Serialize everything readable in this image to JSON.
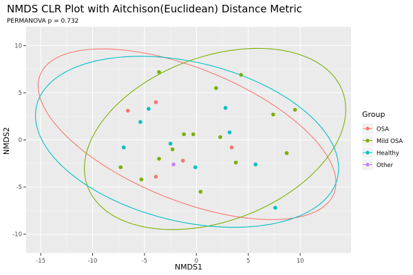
{
  "chart_data": {
    "type": "scatter",
    "title": "NMDS CLR Plot with Aitchison(Euclidean) Distance Metric",
    "subtitle": "PERMANOVA p = 0.732",
    "xlabel": "NMDS1",
    "ylabel": "NMDS2",
    "xlim": [
      -16.4,
      14.9
    ],
    "ylim": [
      -12.0,
      12.0
    ],
    "x_ticks": [
      -15,
      -10,
      -5,
      0,
      5,
      10
    ],
    "y_ticks": [
      -10,
      -5,
      0,
      5,
      10
    ],
    "x_tick_labels": [
      "-15",
      "-10",
      "-5",
      "0",
      "5",
      "10"
    ],
    "y_tick_labels": [
      "-10",
      "-5",
      "0",
      "5",
      "10"
    ],
    "grid": true,
    "panel_background": "#EBEBEB",
    "legend": {
      "title": "Group",
      "position": "right"
    },
    "series": [
      {
        "name": "OSA",
        "color": "#F8766D",
        "points": [
          [
            -6.6,
            3.1
          ],
          [
            -3.9,
            4.0
          ],
          [
            -3.9,
            -3.9
          ],
          [
            -1.3,
            -2.2
          ],
          [
            3.4,
            -0.8
          ],
          [
            8.7,
            -1.4
          ]
        ],
        "ellipse": {
          "cx": -0.9,
          "cy": 0.6,
          "a": 15.5,
          "b": 6.9,
          "angle_deg": -25.0
        }
      },
      {
        "name": "Mild OSA",
        "color": "#7CAE00",
        "points": [
          [
            -3.6,
            7.2
          ],
          [
            -7.3,
            -2.9
          ],
          [
            -5.3,
            -4.2
          ],
          [
            -3.6,
            -2.0
          ],
          [
            -2.3,
            -1.0
          ],
          [
            -1.2,
            0.6
          ],
          [
            -0.3,
            0.6
          ],
          [
            0.4,
            -5.5
          ],
          [
            1.9,
            5.5
          ],
          [
            2.3,
            0.3
          ],
          [
            3.8,
            -2.4
          ],
          [
            4.3,
            6.9
          ],
          [
            7.4,
            2.7
          ],
          [
            8.7,
            -1.4
          ],
          [
            9.5,
            3.2
          ]
        ],
        "ellipse": {
          "cx": 1.8,
          "cy": 0.1,
          "a": 13.3,
          "b": 8.6,
          "angle_deg": 25.0
        }
      },
      {
        "name": "Healthy",
        "color": "#00BFC4",
        "points": [
          [
            -7.0,
            -0.8
          ],
          [
            -5.4,
            1.9
          ],
          [
            -4.6,
            3.3
          ],
          [
            -2.5,
            -0.4
          ],
          [
            -0.1,
            -2.9
          ],
          [
            2.8,
            3.4
          ],
          [
            3.2,
            0.8
          ],
          [
            5.7,
            -2.6
          ],
          [
            7.6,
            -7.2
          ]
        ],
        "ellipse": {
          "cx": -0.9,
          "cy": -0.2,
          "a": 15.0,
          "b": 8.4,
          "angle_deg": -16.0
        }
      },
      {
        "name": "Other",
        "color": "#C77CFF",
        "points": [
          [
            -2.2,
            -2.6
          ]
        ],
        "ellipse": null
      }
    ]
  }
}
